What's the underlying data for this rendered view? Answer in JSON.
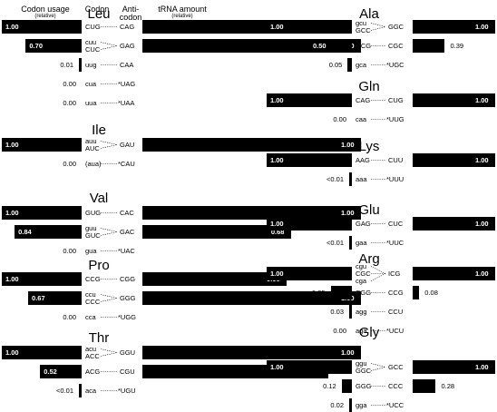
{
  "headers": {
    "codon_usage": "Codon usage",
    "codon_usage_sub": "(relative)",
    "codon": "Codon",
    "anticodon": "Anti-codon",
    "trna": "tRNA amount",
    "trna_sub": "(relative)"
  },
  "chart_data": {
    "type": "bar",
    "layout": "mirrored horizontal bars per amino acid: codon usage (left) vs tRNA amount (right)",
    "max_value": 1.0,
    "groups": [
      {
        "aa": "Leu",
        "rows": [
          {
            "codons": [
              "CUG"
            ],
            "anticodon": "CAG",
            "usage": 1.0,
            "usage_label": "1.00",
            "trna": 0.85,
            "trna_label": "0.85"
          },
          {
            "codons": [
              "cuu",
              "CUC"
            ],
            "anticodon": "GAG",
            "usage": 0.7,
            "usage_label": "0.70",
            "trna": 1.0,
            "trna_label": "1.00"
          },
          {
            "codons": [
              "uug"
            ],
            "anticodon": "CAA",
            "usage": 0.01,
            "usage_label": "0.01",
            "trna": null,
            "trna_label": ""
          },
          {
            "codons": [
              "cua"
            ],
            "anticodon": "*UAG",
            "usage": 0.0,
            "usage_label": "0.00",
            "trna": null,
            "trna_label": ""
          },
          {
            "codons": [
              "uua"
            ],
            "anticodon": "*UAA",
            "usage": 0.0,
            "usage_label": "0.00",
            "trna": null,
            "trna_label": ""
          }
        ]
      },
      {
        "aa": "Ile",
        "rows": [
          {
            "codons": [
              "auu",
              "AUC"
            ],
            "anticodon": "GAU",
            "usage": 1.0,
            "usage_label": "1.00",
            "trna": 1.0,
            "trna_label": "1.00"
          },
          {
            "codons": [
              "(aua)"
            ],
            "anticodon": "*CAU",
            "usage": 0.0,
            "usage_label": "0.00",
            "trna": null,
            "trna_label": ""
          }
        ]
      },
      {
        "aa": "Val",
        "rows": [
          {
            "codons": [
              "GUG"
            ],
            "anticodon": "CAC",
            "usage": 1.0,
            "usage_label": "1.00",
            "trna": 1.0,
            "trna_label": "1.00"
          },
          {
            "codons": [
              "guu",
              "GUC"
            ],
            "anticodon": "GAC",
            "usage": 0.84,
            "usage_label": "0.84",
            "trna": 0.68,
            "trna_label": "0.68"
          },
          {
            "codons": [
              "gua"
            ],
            "anticodon": "*UAC",
            "usage": 0.0,
            "usage_label": "0.00",
            "trna": null,
            "trna_label": ""
          }
        ]
      },
      {
        "aa": "Pro",
        "rows": [
          {
            "codons": [
              "CCG"
            ],
            "anticodon": "CGG",
            "usage": 1.0,
            "usage_label": "1.00",
            "trna": 0.66,
            "trna_label": "0.66"
          },
          {
            "codons": [
              "ccu",
              "CCC"
            ],
            "anticodon": "GGG",
            "usage": 0.67,
            "usage_label": "0.67",
            "trna": 1.0,
            "trna_label": "1.00"
          },
          {
            "codons": [
              "cca"
            ],
            "anticodon": "*UGG",
            "usage": 0.0,
            "usage_label": "0.00",
            "trna": null,
            "trna_label": ""
          }
        ]
      },
      {
        "aa": "Thr",
        "rows": [
          {
            "codons": [
              "acu",
              "ACC"
            ],
            "anticodon": "GGU",
            "usage": 1.0,
            "usage_label": "1.00",
            "trna": 1.0,
            "trna_label": "1.00"
          },
          {
            "codons": [
              "ACG"
            ],
            "anticodon": "CGU",
            "usage": 0.52,
            "usage_label": "0.52",
            "trna": 0.85,
            "trna_label": "0.85"
          },
          {
            "codons": [
              "aca"
            ],
            "anticodon": "*UGU",
            "usage": 0.005,
            "usage_label": "<0.01",
            "trna": null,
            "trna_label": ""
          }
        ]
      },
      {
        "aa": "Ala",
        "rows": [
          {
            "codons": [
              "gcu",
              "GCC"
            ],
            "anticodon": "GGC",
            "usage": 1.0,
            "usage_label": "1.00",
            "trna": 1.0,
            "trna_label": "1.00"
          },
          {
            "codons": [
              "GCG"
            ],
            "anticodon": "CGC",
            "usage": 0.5,
            "usage_label": "0.50",
            "trna": 0.39,
            "trna_label": "0.39"
          },
          {
            "codons": [
              "gca"
            ],
            "anticodon": "*UGC",
            "usage": 0.05,
            "usage_label": "0.05",
            "trna": null,
            "trna_label": ""
          }
        ]
      },
      {
        "aa": "Gln",
        "rows": [
          {
            "codons": [
              "CAG"
            ],
            "anticodon": "CUG",
            "usage": 1.0,
            "usage_label": "1.00",
            "trna": 1.0,
            "trna_label": "1.00"
          },
          {
            "codons": [
              "caa"
            ],
            "anticodon": "*UUG",
            "usage": 0.0,
            "usage_label": "0.00",
            "trna": null,
            "trna_label": ""
          }
        ]
      },
      {
        "aa": "Lys",
        "rows": [
          {
            "codons": [
              "AAG"
            ],
            "anticodon": "CUU",
            "usage": 1.0,
            "usage_label": "1.00",
            "trna": 1.0,
            "trna_label": "1.00"
          },
          {
            "codons": [
              "aaa"
            ],
            "anticodon": "*UUU",
            "usage": 0.005,
            "usage_label": "<0.01",
            "trna": null,
            "trna_label": ""
          }
        ]
      },
      {
        "aa": "Glu",
        "rows": [
          {
            "codons": [
              "GAG"
            ],
            "anticodon": "CUC",
            "usage": 1.0,
            "usage_label": "1.00",
            "trna": 1.0,
            "trna_label": "1.00"
          },
          {
            "codons": [
              "gaa"
            ],
            "anticodon": "*UUC",
            "usage": 0.005,
            "usage_label": "<0.01",
            "trna": null,
            "trna_label": ""
          }
        ]
      },
      {
        "aa": "Arg",
        "rows": [
          {
            "codons": [
              "cgu",
              "CGC",
              "cga"
            ],
            "anticodon": "ICG",
            "usage": 1.0,
            "usage_label": "1.00",
            "trna": 1.0,
            "trna_label": "1.00"
          },
          {
            "codons": [
              "CGG"
            ],
            "anticodon": "CCG",
            "usage": 0.25,
            "usage_label": "0.25",
            "trna": 0.08,
            "trna_label": "0.08"
          },
          {
            "codons": [
              "agg"
            ],
            "anticodon": "CCU",
            "usage": 0.03,
            "usage_label": "0.03",
            "trna": null,
            "trna_label": ""
          },
          {
            "codons": [
              "aga"
            ],
            "anticodon": "*UCU",
            "usage": 0.0,
            "usage_label": "0.00",
            "trna": null,
            "trna_label": ""
          }
        ]
      },
      {
        "aa": "Gly",
        "rows": [
          {
            "codons": [
              "ggu",
              "GGC"
            ],
            "anticodon": "GCC",
            "usage": 1.0,
            "usage_label": "1.00",
            "trna": 1.0,
            "trna_label": "1.00"
          },
          {
            "codons": [
              "GGG"
            ],
            "anticodon": "CCC",
            "usage": 0.12,
            "usage_label": "0.12",
            "trna": 0.28,
            "trna_label": "0.28"
          },
          {
            "codons": [
              "gga"
            ],
            "anticodon": "*UCC",
            "usage": 0.02,
            "usage_label": "0.02",
            "trna": null,
            "trna_label": ""
          }
        ]
      }
    ]
  }
}
